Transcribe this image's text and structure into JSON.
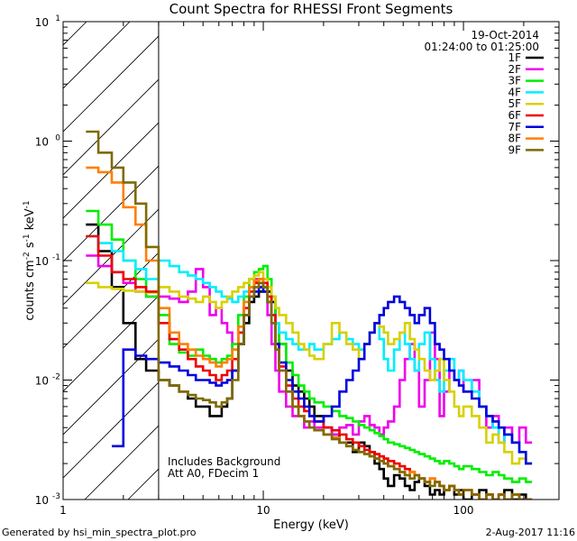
{
  "footer": {
    "left": "Generated by hsi_min_spectra_plot.pro",
    "right": "2-Aug-2017 11:16"
  },
  "chart_data": {
    "type": "line",
    "title": "Count Spectra for RHESSI Front Segments",
    "xlabel": "Energy (keV)",
    "ylabel": "counts cm",
    "ylabel_sup1": "-2",
    "ylabel_mid": " s",
    "ylabel_sup2": "-1",
    "ylabel_mid2": " keV",
    "ylabel_sup3": "-1",
    "x_scale": "log",
    "y_scale": "log",
    "xlim": [
      1,
      300
    ],
    "ylim": [
      0.001,
      10
    ],
    "x_ticks": [
      {
        "value": 1,
        "label": "1"
      },
      {
        "value": 10,
        "label": "10"
      },
      {
        "value": 100,
        "label": "100"
      }
    ],
    "y_ticks": [
      {
        "value": 0.001,
        "base": "10",
        "exp": "-3"
      },
      {
        "value": 0.01,
        "base": "10",
        "exp": "-2"
      },
      {
        "value": 0.1,
        "base": "10",
        "exp": "-1"
      },
      {
        "value": 1,
        "base": "10",
        "exp": "0"
      },
      {
        "value": 10,
        "base": "10",
        "exp": "1"
      }
    ],
    "attenuator_cutoff_kev": 3,
    "date": "19-Oct-2014",
    "time_range": "01:24:00 to 01:25:00",
    "annotation_lines": [
      "Includes Background",
      "Att A0, FDecim 1"
    ],
    "energy_edges": [
      1.3,
      1.5,
      1.75,
      2,
      2.3,
      2.6,
      3,
      3.4,
      3.8,
      4.2,
      4.6,
      5,
      5.4,
      5.8,
      6.2,
      6.6,
      7,
      7.5,
      8,
      8.5,
      9,
      9.5,
      10,
      10.5,
      11,
      11.5,
      12,
      13,
      14,
      15,
      16,
      17,
      18,
      20,
      22,
      24,
      26,
      28,
      30,
      32,
      34,
      36,
      38,
      40,
      42,
      45,
      48,
      51,
      54,
      57,
      60,
      64,
      68,
      72,
      76,
      80,
      85,
      90,
      95,
      100,
      110,
      120,
      130,
      140,
      150,
      160,
      175,
      190,
      205,
      220,
      240,
      260,
      285
    ],
    "series": [
      {
        "name": "1F",
        "color": "#000000",
        "values": [
          0.2,
          0.12,
          0.06,
          0.03,
          0.015,
          0.012,
          0.01,
          0.009,
          0.008,
          0.007,
          0.006,
          0.006,
          0.005,
          0.005,
          0.006,
          0.007,
          0.012,
          0.02,
          0.03,
          0.045,
          0.05,
          0.055,
          0.06,
          0.055,
          0.045,
          0.03,
          0.02,
          0.012,
          0.009,
          0.008,
          0.007,
          0.006,
          0.005,
          0.004,
          0.0035,
          0.003,
          0.003,
          0.0025,
          0.003,
          0.0028,
          0.0025,
          0.002,
          0.0018,
          0.0015,
          0.0013,
          0.0016,
          0.0015,
          0.0013,
          0.0012,
          0.0014,
          0.0015,
          0.0013,
          0.0011,
          0.0012,
          0.0011,
          0.0012,
          0.0013,
          0.0011,
          0.0012,
          0.001,
          0.0011,
          0.0012,
          0.0011,
          0.001,
          0.0011,
          0.0012,
          0.001,
          0.0011,
          0.001
        ]
      },
      {
        "name": "2F",
        "color": "#ee00ee",
        "values": [
          0.11,
          0.09,
          0.08,
          0.065,
          0.055,
          0.05,
          0.05,
          0.048,
          0.045,
          0.055,
          0.085,
          0.06,
          0.035,
          0.04,
          0.03,
          0.025,
          0.018,
          0.025,
          0.04,
          0.06,
          0.07,
          0.065,
          0.055,
          0.035,
          0.02,
          0.012,
          0.008,
          0.006,
          0.005,
          0.005,
          0.004,
          0.0045,
          0.004,
          0.004,
          0.0035,
          0.004,
          0.0042,
          0.0035,
          0.0045,
          0.005,
          0.0042,
          0.004,
          0.0035,
          0.004,
          0.0045,
          0.006,
          0.01,
          0.015,
          0.02,
          0.012,
          0.006,
          0.01,
          0.025,
          0.015,
          0.005,
          0.008,
          0.012,
          0.01,
          0.012,
          0.008,
          0.01,
          0.006,
          0.004,
          0.005,
          0.003,
          0.004,
          0.003,
          0.004,
          0.003
        ]
      },
      {
        "name": "3F",
        "color": "#00ee00",
        "values": [
          0.26,
          0.2,
          0.15,
          0.1,
          0.07,
          0.05,
          0.035,
          0.02,
          0.017,
          0.016,
          0.018,
          0.016,
          0.015,
          0.014,
          0.015,
          0.016,
          0.02,
          0.035,
          0.05,
          0.07,
          0.08,
          0.085,
          0.09,
          0.07,
          0.05,
          0.03,
          0.02,
          0.014,
          0.011,
          0.009,
          0.008,
          0.007,
          0.0065,
          0.006,
          0.0055,
          0.005,
          0.0048,
          0.0045,
          0.0042,
          0.004,
          0.0038,
          0.0036,
          0.0034,
          0.0032,
          0.003,
          0.0029,
          0.0028,
          0.0027,
          0.0026,
          0.0025,
          0.0024,
          0.0023,
          0.0022,
          0.0021,
          0.002,
          0.0021,
          0.002,
          0.0019,
          0.0018,
          0.0019,
          0.0018,
          0.0017,
          0.0016,
          0.0017,
          0.0016,
          0.0015,
          0.0014,
          0.0015,
          0.0014
        ]
      },
      {
        "name": "4F",
        "color": "#00eeff",
        "values": [
          0.16,
          0.14,
          0.12,
          0.1,
          0.085,
          0.07,
          0.1,
          0.09,
          0.08,
          0.075,
          0.07,
          0.065,
          0.06,
          0.055,
          0.05,
          0.048,
          0.045,
          0.05,
          0.055,
          0.06,
          0.065,
          0.06,
          0.055,
          0.045,
          0.035,
          0.03,
          0.025,
          0.022,
          0.02,
          0.018,
          0.018,
          0.02,
          0.018,
          0.02,
          0.022,
          0.025,
          0.022,
          0.02,
          0.018,
          0.02,
          0.025,
          0.03,
          0.022,
          0.015,
          0.012,
          0.018,
          0.025,
          0.02,
          0.015,
          0.012,
          0.02,
          0.025,
          0.015,
          0.01,
          0.008,
          0.012,
          0.015,
          0.01,
          0.012,
          0.01,
          0.008,
          0.006,
          0.005,
          0.004,
          0.003,
          0.0035,
          0.003,
          0.0025,
          0.002
        ]
      },
      {
        "name": "5F",
        "color": "#d8d000",
        "values": [
          0.065,
          0.06,
          0.058,
          0.056,
          0.055,
          0.054,
          0.06,
          0.055,
          0.05,
          0.048,
          0.045,
          0.05,
          0.045,
          0.04,
          0.045,
          0.05,
          0.055,
          0.06,
          0.065,
          0.07,
          0.075,
          0.08,
          0.07,
          0.06,
          0.05,
          0.04,
          0.035,
          0.03,
          0.025,
          0.02,
          0.018,
          0.016,
          0.015,
          0.02,
          0.03,
          0.025,
          0.02,
          0.018,
          0.015,
          0.02,
          0.025,
          0.03,
          0.028,
          0.025,
          0.02,
          0.022,
          0.025,
          0.03,
          0.022,
          0.018,
          0.015,
          0.012,
          0.01,
          0.012,
          0.015,
          0.01,
          0.008,
          0.006,
          0.005,
          0.006,
          0.005,
          0.004,
          0.003,
          0.0035,
          0.003,
          0.0025,
          0.002,
          0.0022,
          0.002
        ]
      },
      {
        "name": "6F",
        "color": "#ee0000",
        "values": [
          0.16,
          0.11,
          0.08,
          0.07,
          0.06,
          0.055,
          0.03,
          0.022,
          0.018,
          0.015,
          0.013,
          0.012,
          0.011,
          0.01,
          0.011,
          0.012,
          0.015,
          0.025,
          0.04,
          0.055,
          0.065,
          0.07,
          0.065,
          0.05,
          0.035,
          0.02,
          0.013,
          0.009,
          0.007,
          0.006,
          0.0055,
          0.005,
          0.0045,
          0.004,
          0.0038,
          0.0035,
          0.0032,
          0.003,
          0.0028,
          0.0026,
          0.0025,
          0.0024,
          0.0023,
          0.0022,
          0.0021,
          0.002,
          0.0019,
          0.0018,
          0.0017,
          0.0016,
          0.0015,
          0.0014,
          0.0015,
          0.0014,
          0.0013,
          0.0012,
          0.0013,
          0.0012,
          0.0011,
          0.0012,
          0.0011,
          0.001,
          0.0011,
          0.001,
          0.0011,
          0.001,
          0.0011,
          0.001,
          0.001
        ]
      },
      {
        "name": "7F",
        "color": "#0000dd",
        "values": [
          null,
          null,
          0.0028,
          0.018,
          0.016,
          0.015,
          0.014,
          0.013,
          0.012,
          0.011,
          0.01,
          0.01,
          0.0095,
          0.009,
          0.0095,
          0.01,
          0.012,
          0.02,
          0.035,
          0.05,
          0.055,
          0.06,
          0.055,
          0.045,
          0.03,
          0.02,
          0.014,
          0.01,
          0.008,
          0.007,
          0.006,
          0.005,
          0.0045,
          0.005,
          0.006,
          0.008,
          0.01,
          0.012,
          0.015,
          0.02,
          0.025,
          0.03,
          0.035,
          0.04,
          0.045,
          0.05,
          0.045,
          0.04,
          0.035,
          0.03,
          0.035,
          0.04,
          0.03,
          0.02,
          0.018,
          0.015,
          0.012,
          0.01,
          0.009,
          0.008,
          0.007,
          0.006,
          0.005,
          0.0045,
          0.004,
          0.0035,
          0.003,
          0.0025,
          0.002
        ]
      },
      {
        "name": "8F",
        "color": "#ff7f00",
        "values": [
          0.6,
          0.55,
          0.45,
          0.28,
          0.2,
          0.1,
          0.04,
          0.025,
          0.02,
          0.018,
          0.016,
          0.015,
          0.014,
          0.013,
          0.014,
          0.015,
          0.018,
          0.028,
          0.045,
          0.06,
          0.068,
          0.07,
          0.06,
          0.045,
          0.03,
          0.018,
          0.012,
          0.008,
          0.006,
          0.005,
          0.0045,
          0.004,
          0.0038,
          0.0035,
          0.0033,
          0.003,
          0.0028,
          0.0026,
          0.0025,
          0.0024,
          0.0023,
          0.0022,
          0.0021,
          0.002,
          0.0019,
          0.0018,
          0.0017,
          0.0016,
          0.0017,
          0.0016,
          0.0015,
          0.0014,
          0.0015,
          0.0014,
          0.0013,
          0.0012,
          0.0013,
          0.0012,
          0.0011,
          0.0012,
          0.0011,
          0.001,
          0.0011,
          0.001,
          0.0011,
          0.001,
          0.0011,
          0.001,
          0.001
        ]
      },
      {
        "name": "9F",
        "color": "#7f6a00",
        "values": [
          1.2,
          0.8,
          0.6,
          0.45,
          0.3,
          0.13,
          0.01,
          0.009,
          0.008,
          0.0075,
          0.007,
          0.0068,
          0.0065,
          0.006,
          0.0065,
          0.007,
          0.01,
          0.02,
          0.035,
          0.05,
          0.06,
          0.065,
          0.06,
          0.045,
          0.03,
          0.018,
          0.012,
          0.008,
          0.006,
          0.005,
          0.0045,
          0.004,
          0.0038,
          0.0035,
          0.0032,
          0.003,
          0.0028,
          0.0026,
          0.0025,
          0.0024,
          0.0023,
          0.0022,
          0.0021,
          0.002,
          0.0019,
          0.0018,
          0.0017,
          0.0016,
          0.0015,
          0.0016,
          0.0015,
          0.0014,
          0.0013,
          0.0014,
          0.0013,
          0.0012,
          0.0013,
          0.0012,
          0.0011,
          0.0012,
          0.0011,
          0.001,
          0.0011,
          0.001,
          0.0011,
          0.001,
          0.0011,
          0.001,
          0.001
        ]
      }
    ]
  }
}
